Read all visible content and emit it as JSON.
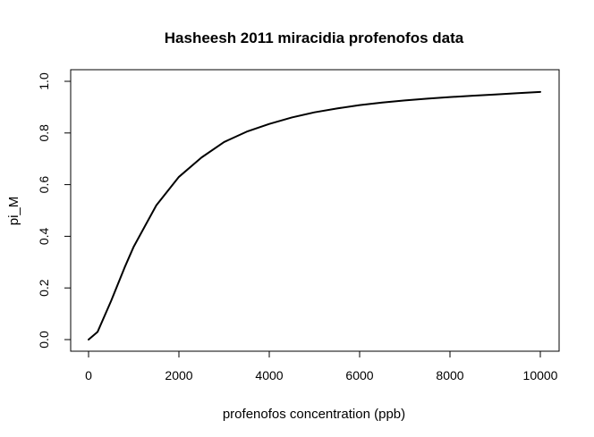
{
  "chart_data": {
    "type": "line",
    "title": "Hasheesh 2011 miracidia profenofos data",
    "xlabel": "profenofos concentration (ppb)",
    "ylabel": "pi_M",
    "xlim": [
      0,
      10000
    ],
    "ylim": [
      0,
      1
    ],
    "x_ticks": [
      "0",
      "2000",
      "4000",
      "6000",
      "8000",
      "10000"
    ],
    "y_ticks": [
      "0.0",
      "0.2",
      "0.4",
      "0.6",
      "0.8",
      "1.0"
    ],
    "grid": false,
    "series": [
      {
        "color": "#000000",
        "x": [
          0,
          200,
          500,
          800,
          1000,
          1500,
          2000,
          2500,
          3000,
          3500,
          4000,
          4500,
          5000,
          5500,
          6000,
          6500,
          7000,
          7500,
          8000,
          8500,
          9000,
          9500,
          10000
        ],
        "y": [
          0.0,
          0.03,
          0.15,
          0.28,
          0.36,
          0.52,
          0.63,
          0.705,
          0.765,
          0.805,
          0.835,
          0.86,
          0.88,
          0.895,
          0.908,
          0.918,
          0.926,
          0.933,
          0.939,
          0.944,
          0.949,
          0.954,
          0.959
        ]
      }
    ]
  }
}
